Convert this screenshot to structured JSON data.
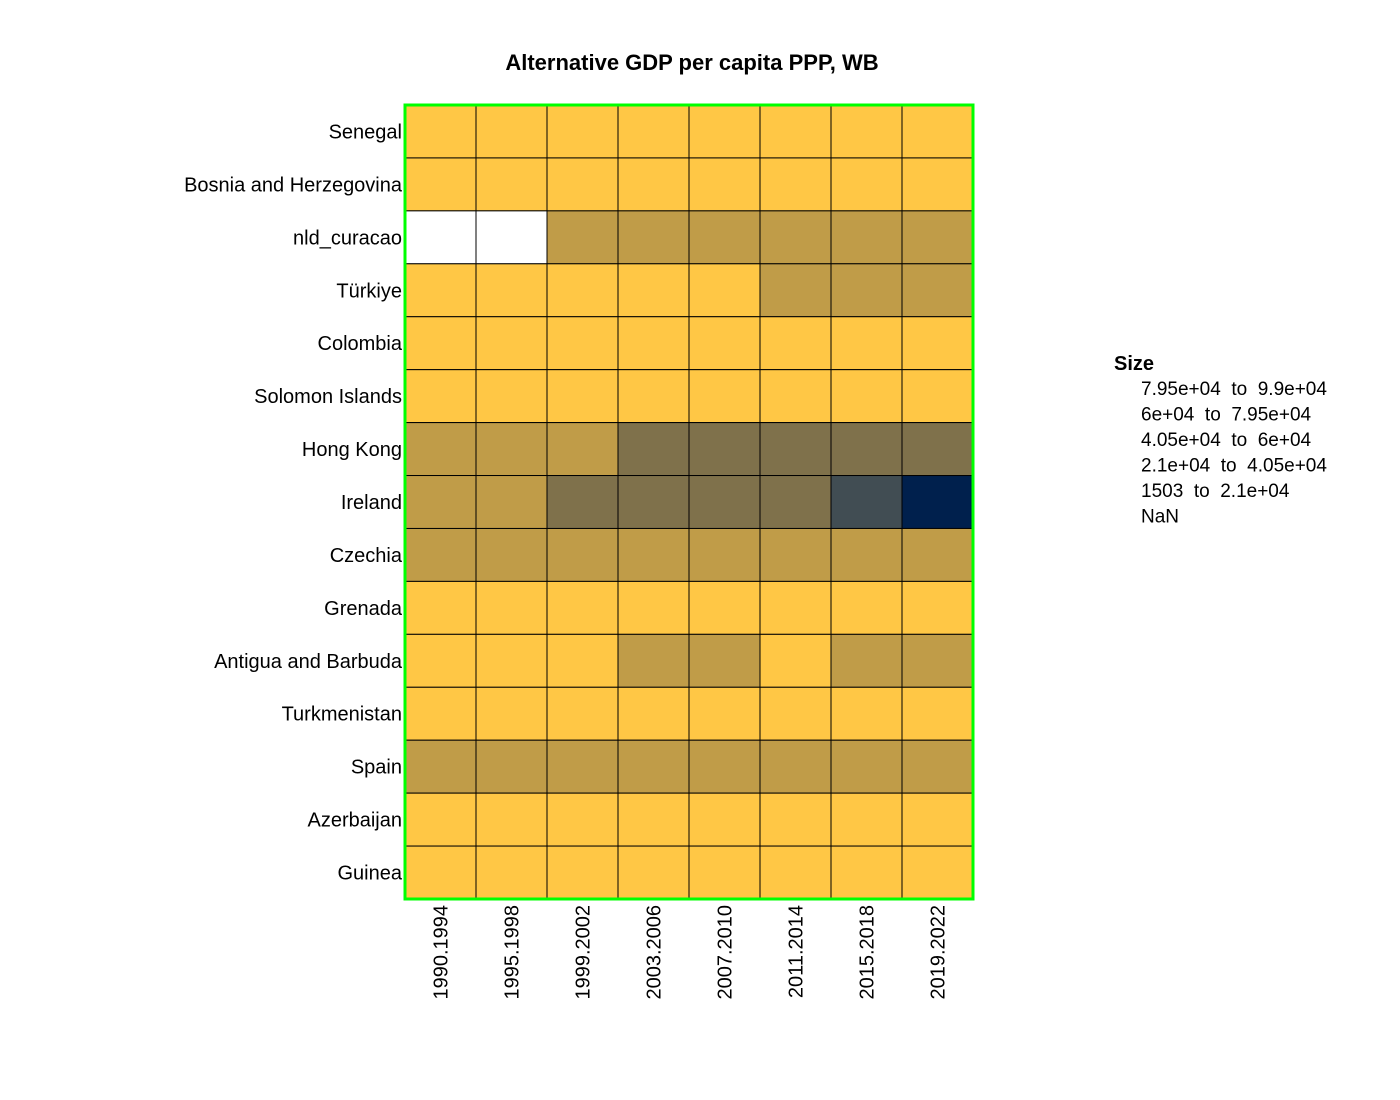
{
  "chart_data": {
    "type": "heatmap",
    "title": "Alternative GDP per capita PPP, WB",
    "rows": [
      "Senegal",
      "Bosnia and Herzegovina",
      "nld_curacao",
      "Türkiye",
      "Colombia",
      "Solomon Islands",
      "Hong Kong",
      "Ireland",
      "Czechia",
      "Grenada",
      "Antigua and Barbuda",
      "Turkmenistan",
      "Spain",
      "Azerbaijan",
      "Guinea"
    ],
    "columns": [
      "1990.1994",
      "1995.1998",
      "1999.2002",
      "2003.2006",
      "2007.2010",
      "2011.2014",
      "2015.2018",
      "2019.2022"
    ],
    "bins": [
      {
        "label": "7.95e+04  to  9.9e+04",
        "color": "#00204d"
      },
      {
        "label": "6e+04  to  7.95e+04",
        "color": "#414d53"
      },
      {
        "label": "4.05e+04  to  6e+04",
        "color": "#7f714b"
      },
      {
        "label": "2.1e+04  to  4.05e+04",
        "color": "#c09c48"
      },
      {
        "label": "1503  to  2.1e+04",
        "color": "#ffc745"
      },
      {
        "label": "NaN",
        "color": "#ffffff"
      }
    ],
    "cell_bins": [
      [
        4,
        4,
        4,
        4,
        4,
        4,
        4,
        4
      ],
      [
        4,
        4,
        4,
        4,
        4,
        4,
        4,
        4
      ],
      [
        5,
        5,
        3,
        3,
        3,
        3,
        3,
        3
      ],
      [
        4,
        4,
        4,
        4,
        4,
        3,
        3,
        3
      ],
      [
        4,
        4,
        4,
        4,
        4,
        4,
        4,
        4
      ],
      [
        4,
        4,
        4,
        4,
        4,
        4,
        4,
        4
      ],
      [
        3,
        3,
        3,
        2,
        2,
        2,
        2,
        2
      ],
      [
        3,
        3,
        2,
        2,
        2,
        2,
        1,
        0
      ],
      [
        3,
        3,
        3,
        3,
        3,
        3,
        3,
        3
      ],
      [
        4,
        4,
        4,
        4,
        4,
        4,
        4,
        4
      ],
      [
        4,
        4,
        4,
        3,
        3,
        4,
        3,
        3
      ],
      [
        4,
        4,
        4,
        4,
        4,
        4,
        4,
        4
      ],
      [
        3,
        3,
        3,
        3,
        3,
        3,
        3,
        3
      ],
      [
        4,
        4,
        4,
        4,
        4,
        4,
        4,
        4
      ],
      [
        4,
        4,
        4,
        4,
        4,
        4,
        4,
        4
      ]
    ],
    "legend": {
      "title": "Size",
      "position": "right"
    },
    "colors": {
      "cell_border": "#000000",
      "frame": "#00ff00"
    }
  }
}
